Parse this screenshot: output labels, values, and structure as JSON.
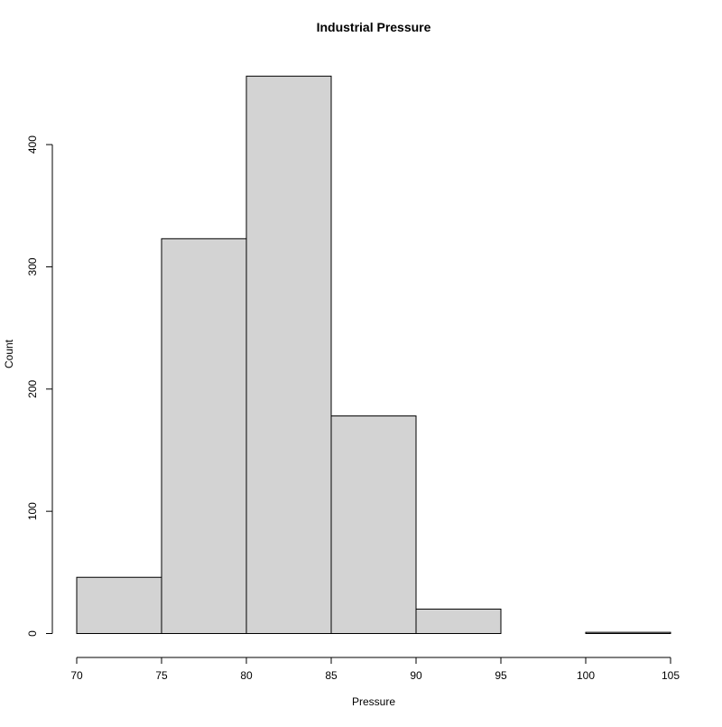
{
  "chart_data": {
    "type": "bar",
    "subtype": "histogram",
    "title": "Industrial Pressure",
    "xlabel": "Pressure",
    "ylabel": "Count",
    "bin_edges": [
      70,
      75,
      80,
      85,
      90,
      95,
      100,
      105
    ],
    "values": [
      46,
      323,
      456,
      178,
      20,
      0,
      1
    ],
    "x_ticks": [
      "70",
      "75",
      "80",
      "85",
      "90",
      "95",
      "100",
      "105"
    ],
    "y_ticks": [
      "0",
      "100",
      "200",
      "300",
      "400"
    ],
    "xlim": [
      70,
      105
    ],
    "ylim": [
      0,
      400
    ],
    "grid": false,
    "bar_fill": "#d3d3d3",
    "bar_stroke": "#000000"
  }
}
